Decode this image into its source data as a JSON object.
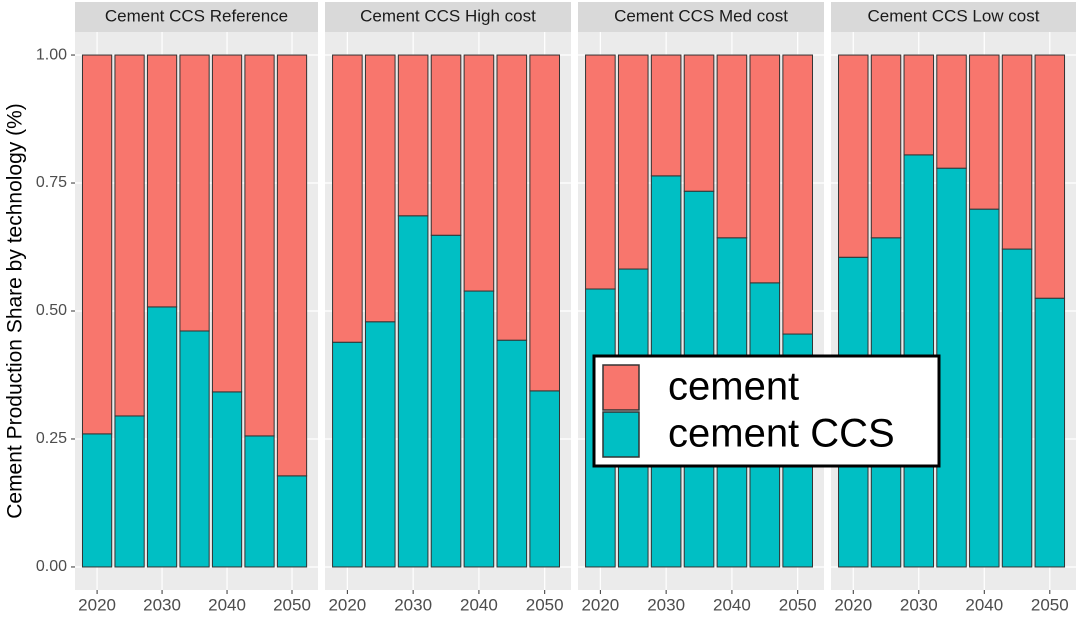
{
  "chart_data": {
    "type": "bar",
    "stacked": true,
    "ylabel": "Cement Production Share by technology (%)",
    "ylim": [
      -0.045,
      1.045
    ],
    "yticks": [
      {
        "value": 0,
        "label": "0.00"
      },
      {
        "value": 0.25,
        "label": "0.25"
      },
      {
        "value": 0.5,
        "label": "0.50"
      },
      {
        "value": 0.75,
        "label": "0.75"
      },
      {
        "value": 1,
        "label": "1.00"
      }
    ],
    "xlim": [
      2016.6,
      2054
    ],
    "xticks": [
      2020,
      2030,
      2040,
      2050
    ],
    "x": [
      2020,
      2025,
      2030,
      2035,
      2040,
      2045,
      2050
    ],
    "grid": true,
    "series": [
      {
        "name": "cement",
        "color": "#f8766d"
      },
      {
        "name": "cement CCS",
        "color": "#00bfc4"
      }
    ],
    "facets": [
      {
        "title": "Cement CCS Reference",
        "values": [
          [
            0.74,
            0.705,
            0.492,
            0.539,
            0.658,
            0.744,
            0.822
          ],
          [
            0.26,
            0.295,
            0.508,
            0.461,
            0.342,
            0.256,
            0.178
          ]
        ]
      },
      {
        "title": "Cement CCS High cost",
        "values": [
          [
            0.561,
            0.521,
            0.314,
            0.352,
            0.461,
            0.557,
            0.656
          ],
          [
            0.439,
            0.479,
            0.686,
            0.648,
            0.539,
            0.443,
            0.344
          ]
        ]
      },
      {
        "title": "Cement CCS Med cost",
        "values": [
          [
            0.457,
            0.418,
            0.236,
            0.266,
            0.357,
            0.445,
            0.545
          ],
          [
            0.543,
            0.582,
            0.764,
            0.734,
            0.643,
            0.555,
            0.455
          ]
        ]
      },
      {
        "title": "Cement CCS Low cost",
        "values": [
          [
            0.395,
            0.357,
            0.195,
            0.221,
            0.301,
            0.379,
            0.475
          ],
          [
            0.605,
            0.643,
            0.805,
            0.779,
            0.699,
            0.621,
            0.525
          ]
        ]
      }
    ]
  }
}
